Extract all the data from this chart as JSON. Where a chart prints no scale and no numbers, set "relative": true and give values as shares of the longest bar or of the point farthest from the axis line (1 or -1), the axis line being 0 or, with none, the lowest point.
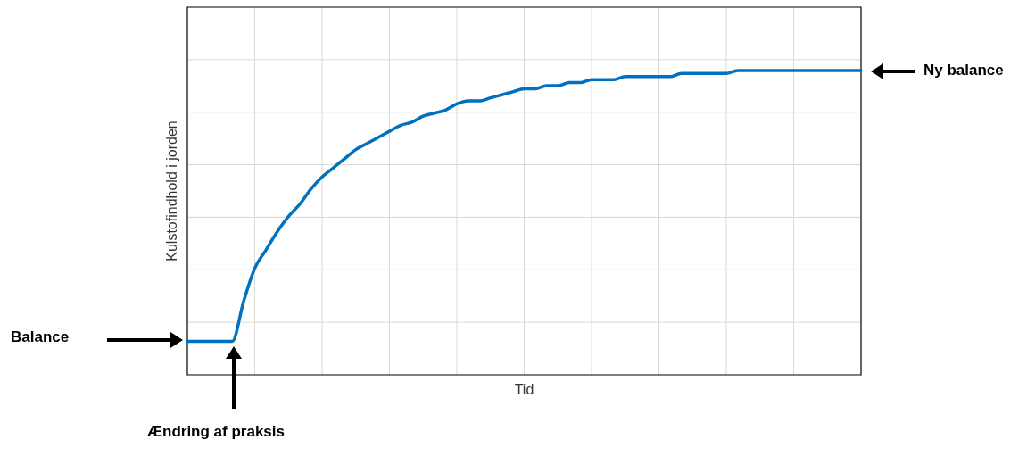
{
  "chart_data": {
    "type": "line",
    "relative": true,
    "xlabel": "Tid",
    "ylabel": "Kulstofindhold i jorden",
    "grid": true,
    "marker": "none",
    "line_style": "solid",
    "categories": [
      null,
      null,
      null,
      null,
      null,
      null,
      null,
      null,
      null,
      null,
      null,
      null,
      null,
      null,
      null,
      null,
      null,
      null,
      null,
      null,
      null,
      null,
      null,
      null,
      null,
      null,
      null,
      null,
      null,
      null,
      null,
      null,
      null,
      null,
      null,
      null,
      null,
      null,
      null,
      null,
      null,
      null,
      null,
      null,
      null,
      null,
      null,
      null,
      null,
      null,
      null,
      null,
      null,
      null,
      null,
      null,
      null,
      null,
      null,
      null,
      null
    ],
    "series": [
      {
        "color": "#0070c0",
        "values": [
          0.11,
          0.11,
          0.11,
          0.11,
          0.11,
          0.24,
          0.35,
          0.41,
          0.47,
          0.52,
          0.56,
          0.61,
          0.65,
          0.68,
          0.71,
          0.74,
          0.76,
          0.78,
          0.8,
          0.82,
          0.83,
          0.85,
          0.86,
          0.87,
          0.89,
          0.9,
          0.9,
          0.91,
          0.92,
          0.93,
          0.94,
          0.94,
          0.95,
          0.95,
          0.96,
          0.96,
          0.97,
          0.97,
          0.97,
          0.98,
          0.98,
          0.98,
          0.98,
          0.98,
          0.99,
          0.99,
          0.99,
          0.99,
          0.99,
          1,
          1,
          1,
          1,
          1,
          1,
          1,
          1,
          1,
          1,
          1,
          1
        ]
      }
    ],
    "annotations": [
      "Balance",
      "Ny balance",
      "Ændring af praksis"
    ]
  }
}
